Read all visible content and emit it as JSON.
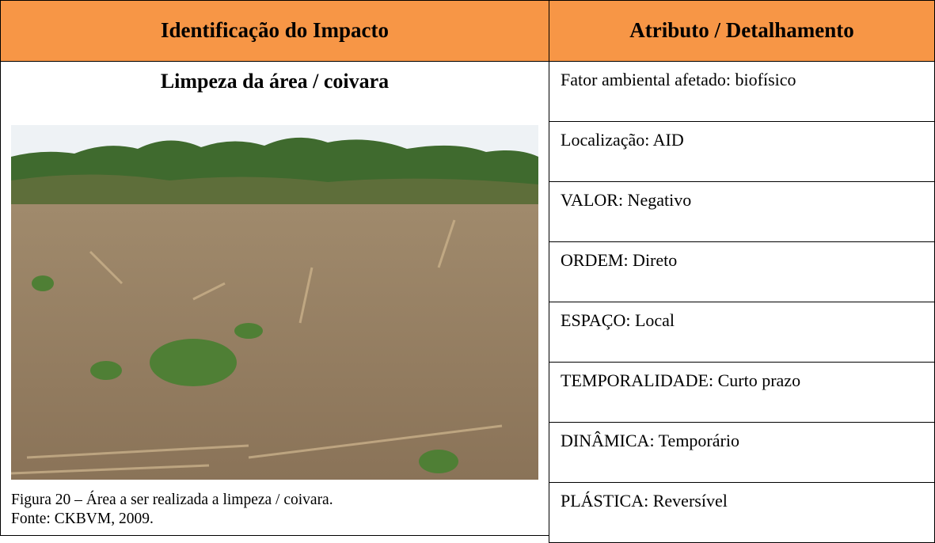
{
  "header": {
    "columns": [
      "Identificação do Impacto",
      "Atributo / Detalhamento"
    ]
  },
  "impact": {
    "title": "Limpeza da área / coivara",
    "caption": [
      "Figura 20 – Área a ser realizada a limpeza / coivara.",
      "Fonte: CKBVM, 2009."
    ]
  },
  "attributes": [
    "Fator ambiental afetado: biofísico",
    "Localização: AID",
    "VALOR: Negativo",
    "ORDEM: Direto",
    "ESPAÇO: Local",
    "TEMPORALIDADE: Curto prazo",
    "DINÂMICA: Temporário",
    "PLÁSTICA: Reversível"
  ]
}
